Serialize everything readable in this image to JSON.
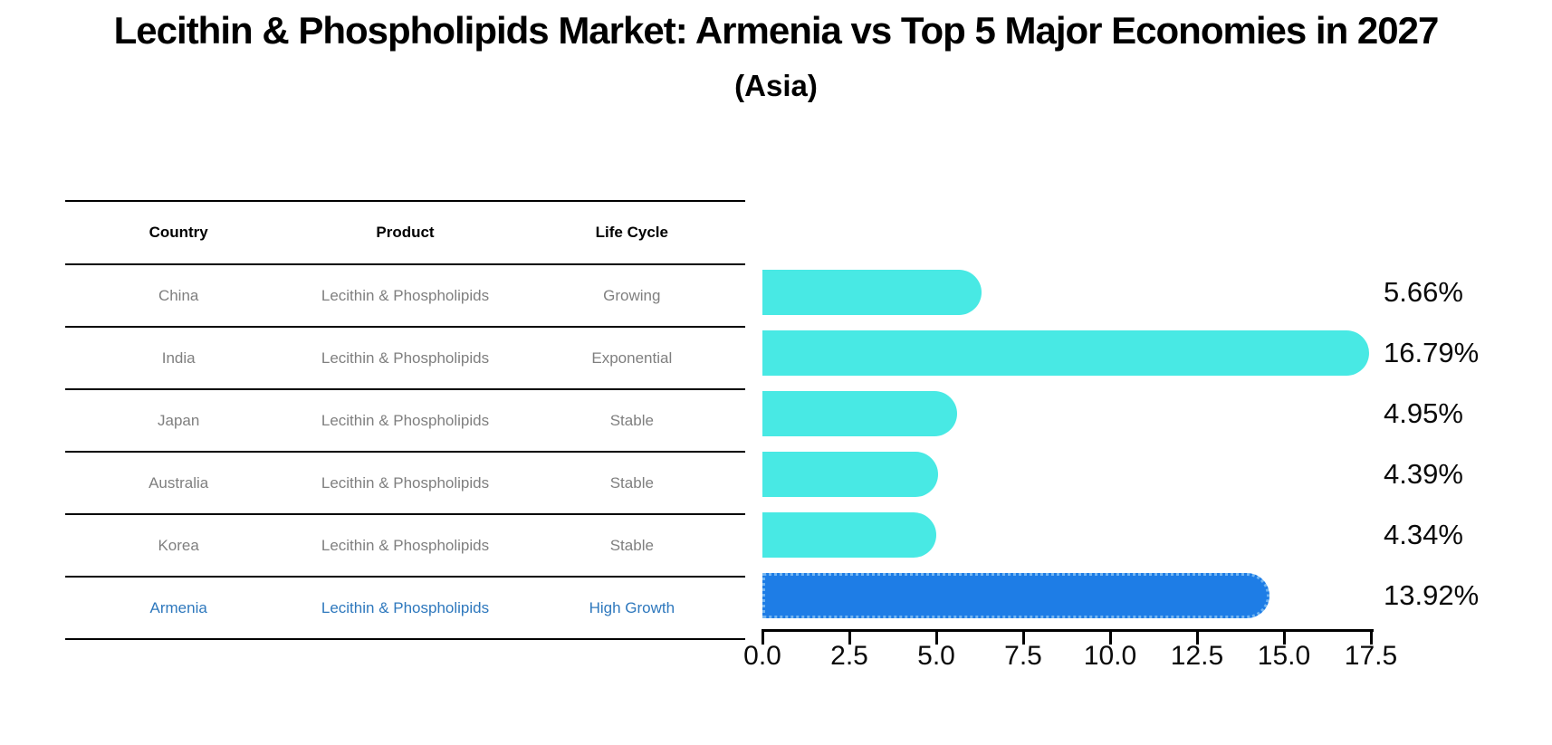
{
  "title": "Lecithin & Phospholipids Market: Armenia vs Top 5 Major Economies in 2027",
  "subtitle": "(Asia)",
  "table": {
    "headers": [
      "Country",
      "Product",
      "Life Cycle"
    ],
    "rows": [
      {
        "country": "China",
        "product": "Lecithin & Phospholipids",
        "life_cycle": "Growing",
        "highlight": false
      },
      {
        "country": "India",
        "product": "Lecithin & Phospholipids",
        "life_cycle": "Exponential",
        "highlight": false
      },
      {
        "country": "Japan",
        "product": "Lecithin & Phospholipids",
        "life_cycle": "Stable",
        "highlight": false
      },
      {
        "country": "Australia",
        "product": "Lecithin & Phospholipids",
        "life_cycle": "Stable",
        "highlight": false
      },
      {
        "country": "Korea",
        "product": "Lecithin & Phospholipids",
        "life_cycle": "Stable",
        "highlight": false
      },
      {
        "country": "Armenia",
        "product": "Lecithin & Phospholipids",
        "life_cycle": "High Growth",
        "highlight": true
      }
    ]
  },
  "chart_data": {
    "type": "bar",
    "orientation": "horizontal",
    "categories": [
      "China",
      "India",
      "Japan",
      "Australia",
      "Korea",
      "Armenia"
    ],
    "values": [
      5.66,
      16.79,
      4.95,
      4.39,
      4.34,
      13.92
    ],
    "value_labels": [
      "5.66%",
      "16.79%",
      "4.95%",
      "4.39%",
      "4.34%",
      "13.92%"
    ],
    "highlight_index": 5,
    "x_ticks": [
      "0.0",
      "2.5",
      "5.0",
      "7.5",
      "10.0",
      "12.5",
      "15.0",
      "17.5"
    ],
    "xlim": [
      0,
      17.5
    ],
    "grid": false,
    "legend": "none",
    "bar_color": "#48e9e4",
    "highlight_bar_color": "#1e7de6",
    "highlight_border_color": "#74b6f2",
    "highlight_text_color": "#2e78bd",
    "value_label_color": "#0a0a0a"
  },
  "colors": {
    "background": "#ffffff",
    "table_line": "#000000",
    "table_text": "#7f7f7f",
    "header_text": "#000000"
  }
}
